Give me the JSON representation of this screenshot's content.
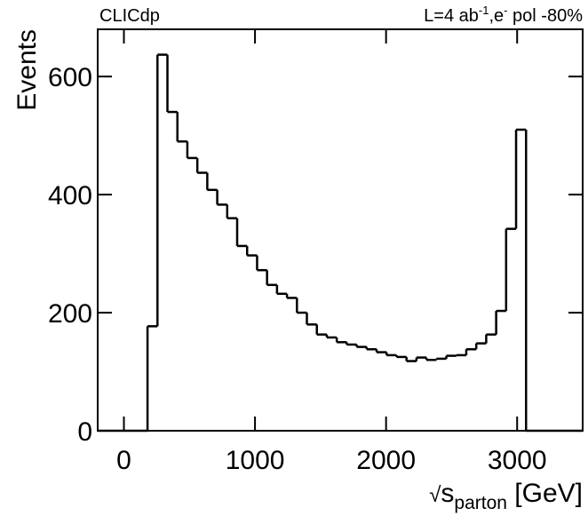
{
  "chart_data": {
    "type": "histogram",
    "label_left": "CLICdp",
    "label_right": {
      "pre": "L=4 ab",
      "sup1": "-1",
      "mid": ",e",
      "sup2": "-",
      "post": " pol -80%"
    },
    "x_label": {
      "root": "√",
      "main": "s",
      "sub": "parton",
      "unit": " [GeV]"
    },
    "y_label": "Events",
    "bins": [
      180,
      256,
      332,
      408,
      484,
      560,
      636,
      712,
      788,
      864,
      940,
      1016,
      1092,
      1168,
      1244,
      1320,
      1396,
      1472,
      1548,
      1624,
      1700,
      1776,
      1852,
      1928,
      2004,
      2080,
      2156,
      2232,
      2308,
      2384,
      2460,
      2536,
      2612,
      2688,
      2764,
      2840,
      2916,
      2992,
      3068
    ],
    "values": [
      177,
      637,
      540,
      490,
      462,
      437,
      408,
      383,
      360,
      313,
      297,
      272,
      247,
      232,
      225,
      200,
      180,
      163,
      158,
      150,
      146,
      142,
      138,
      133,
      128,
      125,
      118,
      124,
      120,
      122,
      127,
      128,
      138,
      148,
      163,
      203,
      342,
      510
    ],
    "color": "#000000",
    "xlim": [
      -200,
      3500
    ],
    "xticks": [
      0,
      1000,
      2000,
      3000
    ],
    "ylim": [
      0,
      680
    ],
    "yticks": [
      0,
      200,
      400,
      600
    ]
  }
}
